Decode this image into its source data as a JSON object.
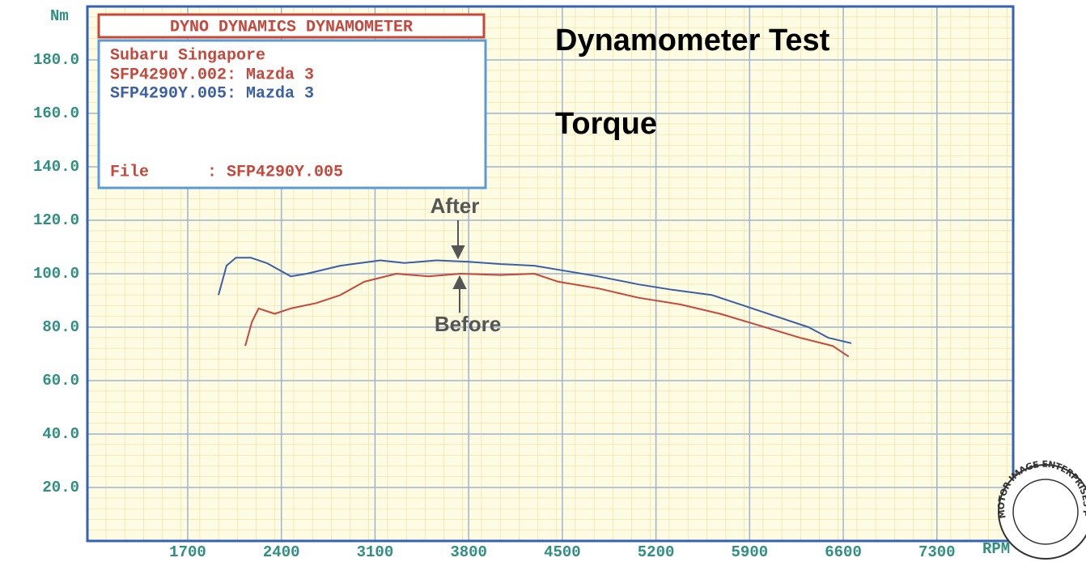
{
  "chart_data": {
    "type": "line",
    "title": "Dynamometer Test",
    "subtitle": "Torque",
    "box_header": "DYNO DYNAMICS DYNAMOMETER",
    "box_subtitle": "Subaru Singapore",
    "file_label": "File      : SFP4290Y.005",
    "stamp": "MOTOR IMAGE ENTERPRISES PTE LTD",
    "y_label": "Nm",
    "x_label": "RPM",
    "annotations": [
      "After",
      "Before"
    ],
    "xlim": [
      950,
      7870
    ],
    "ylim": [
      0,
      200
    ],
    "xticks": [
      1700,
      2400,
      3100,
      3800,
      4500,
      5200,
      5900,
      6600,
      7300
    ],
    "yticks": [
      {
        "value": 20,
        "label": "20.0"
      },
      {
        "value": 40,
        "label": "40.0"
      },
      {
        "value": 60,
        "label": "60.0"
      },
      {
        "value": 80,
        "label": "80.0"
      },
      {
        "value": 100,
        "label": "100.0"
      },
      {
        "value": 120,
        "label": "120.0"
      },
      {
        "value": 140,
        "label": "140.0"
      },
      {
        "value": 160,
        "label": "160.0"
      },
      {
        "value": 180,
        "label": "180.0"
      }
    ],
    "grid": true,
    "series": [
      {
        "name": "SFP4290Y.002: Mazda 3",
        "color": "#c8473b",
        "x": [
          2130,
          2180,
          2230,
          2350,
          2470,
          2660,
          2840,
          3020,
          3260,
          3500,
          3740,
          4040,
          4290,
          4470,
          4770,
          5070,
          5380,
          5680,
          5980,
          6280,
          6520,
          6640
        ],
        "values": [
          73,
          82,
          87,
          85,
          87,
          89,
          92,
          97,
          100,
          99,
          100,
          99.5,
          100,
          97,
          94.5,
          91,
          88.5,
          85,
          80.5,
          76,
          73,
          69
        ]
      },
      {
        "name": "SFP4290Y.005: Mazda 3",
        "color": "#3a5fa8",
        "x": [
          1930,
          1990,
          2060,
          2170,
          2290,
          2470,
          2590,
          2840,
          3140,
          3320,
          3560,
          3800,
          4040,
          4290,
          4530,
          4770,
          5070,
          5320,
          5620,
          5860,
          6100,
          6340,
          6490,
          6660
        ],
        "values": [
          92,
          103,
          106,
          106,
          104,
          99,
          100,
          103,
          105,
          104,
          105,
          104.5,
          103.6,
          103,
          101,
          99,
          96,
          94,
          92,
          88,
          84,
          80,
          76,
          74
        ]
      }
    ]
  }
}
